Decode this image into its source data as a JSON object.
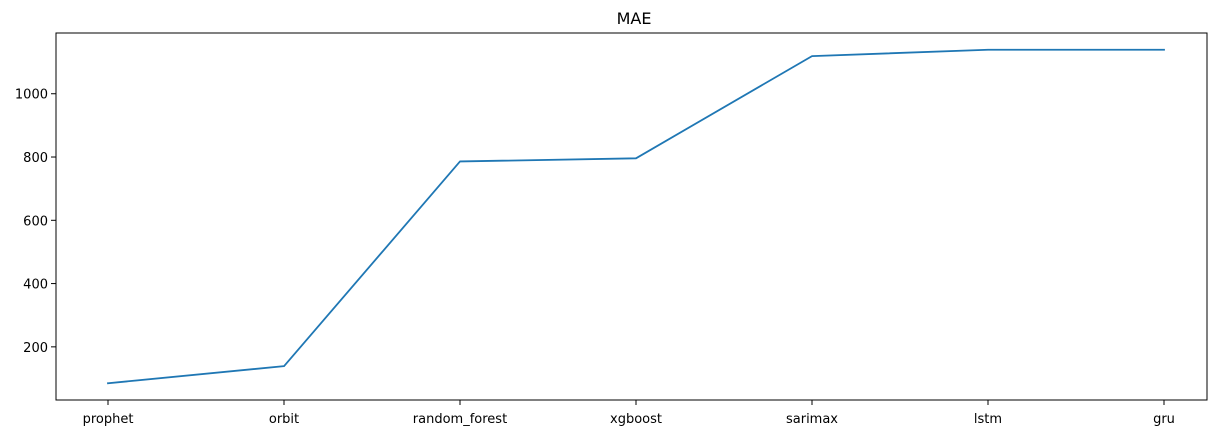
{
  "chart_data": {
    "type": "line",
    "title": "MAE",
    "xlabel": "",
    "ylabel": "",
    "categories": [
      "prophet",
      "orbit",
      "random_forest",
      "xgboost",
      "sarimax",
      "lstm",
      "gru"
    ],
    "series": [
      {
        "values": [
          85,
          139,
          786,
          796,
          1119,
          1139,
          1139
        ],
        "color": "#1f77b4"
      }
    ],
    "yticks": [
      200,
      400,
      600,
      800,
      1000
    ],
    "ylim": [
      32,
      1192
    ],
    "grid": false,
    "legend": "none"
  }
}
